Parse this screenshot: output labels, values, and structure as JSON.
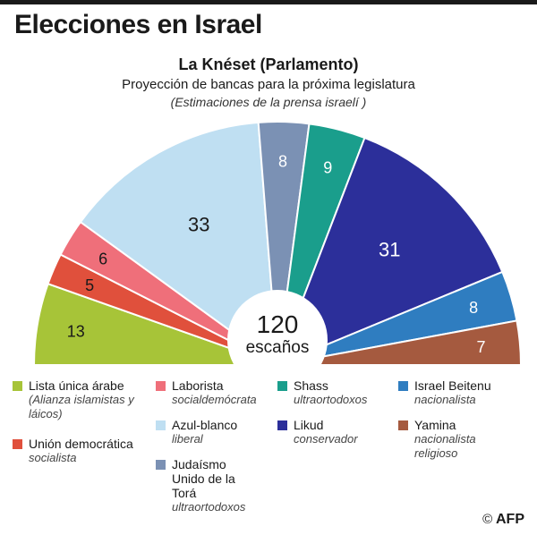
{
  "header": {
    "title": "Elecciones en Israel",
    "subtitle": "La Knéset (Parlamento)",
    "description": "Proyección de bancas para la próxima legislatura",
    "note": "(Estimaciones de la prensa israelí )"
  },
  "chart_data": {
    "type": "pie",
    "shape": "semicircle",
    "title": "La Knéset (Parlamento)",
    "total": 120,
    "total_label": "escaños",
    "series": [
      {
        "name": "Lista única árabe",
        "value": 13,
        "color": "#a7c438",
        "label_color": "#1a1a1a"
      },
      {
        "name": "Unión democrática",
        "value": 5,
        "color": "#e0503c",
        "label_color": "#1a1a1a"
      },
      {
        "name": "Laborista",
        "value": 6,
        "color": "#ef6f7a",
        "label_color": "#1a1a1a"
      },
      {
        "name": "Azul-blanco",
        "value": 33,
        "color": "#bfdff2",
        "label_color": "#1a1a1a"
      },
      {
        "name": "Judaísmo Unido de la Torá",
        "value": 8,
        "color": "#7b91b4",
        "label_color": "#ffffff"
      },
      {
        "name": "Shass",
        "value": 9,
        "color": "#1a9e8c",
        "label_color": "#ffffff"
      },
      {
        "name": "Likud",
        "value": 31,
        "color": "#2c2f9a",
        "label_color": "#ffffff"
      },
      {
        "name": "Israel Beitenu",
        "value": 8,
        "color": "#2f7dc0",
        "label_color": "#ffffff"
      },
      {
        "name": "Yamina",
        "value": 7,
        "color": "#a55a3f",
        "label_color": "#ffffff"
      }
    ]
  },
  "legend": [
    {
      "name": "Lista única árabe",
      "desc": "(Alianza islamistas y láicos)",
      "color": "#a7c438"
    },
    {
      "name": "Unión democrática",
      "desc": "socialista",
      "color": "#e0503c"
    },
    {
      "name": "Laborista",
      "desc": "socialdemócrata",
      "color": "#ef6f7a"
    },
    {
      "name": "Azul-blanco",
      "desc": "liberal",
      "color": "#bfdff2"
    },
    {
      "name": "Judaísmo Unido de la Torá",
      "desc": "ultraortodoxos",
      "color": "#7b91b4"
    },
    {
      "name": "Shass",
      "desc": "ultraortodoxos",
      "color": "#1a9e8c"
    },
    {
      "name": "Likud",
      "desc": "conservador",
      "color": "#2c2f9a"
    },
    {
      "name": "Israel Beitenu",
      "desc": "nacionalista",
      "color": "#2f7dc0"
    },
    {
      "name": "Yamina",
      "desc": "nacionalista religioso",
      "color": "#a55a3f"
    }
  ],
  "credit": {
    "copyright": "©",
    "brand": "AFP"
  }
}
